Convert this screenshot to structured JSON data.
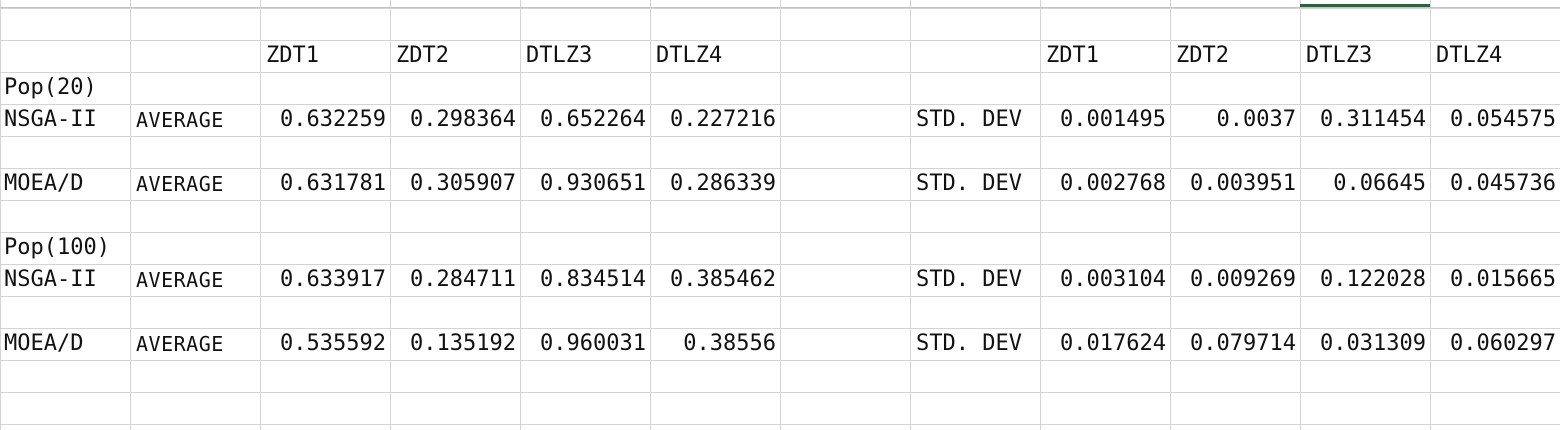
{
  "sheet": {
    "headers": [
      "ZDT1",
      "ZDT2",
      "DTLZ3",
      "DTLZ4"
    ],
    "groups": [
      {
        "label": "Pop(20)",
        "rows": [
          {
            "algorithm": "NSGA-II",
            "avg_label": "AVERAGE",
            "avg": [
              "0.632259",
              "0.298364",
              "0.652264",
              "0.227216"
            ],
            "std_label": "STD. DEV",
            "std": [
              "0.001495",
              "0.0037",
              "0.311454",
              "0.054575"
            ]
          },
          {
            "algorithm": "MOEA/D",
            "avg_label": "AVERAGE",
            "avg": [
              "0.631781",
              "0.305907",
              "0.930651",
              "0.286339"
            ],
            "std_label": "STD. DEV",
            "std": [
              "0.002768",
              "0.003951",
              "0.06645",
              "0.045736"
            ]
          }
        ]
      },
      {
        "label": "Pop(100)",
        "rows": [
          {
            "algorithm": "NSGA-II",
            "avg_label": "AVERAGE",
            "avg": [
              "0.633917",
              "0.284711",
              "0.834514",
              "0.385462"
            ],
            "std_label": "STD. DEV",
            "std": [
              "0.003104",
              "0.009269",
              "0.122028",
              "0.015665"
            ]
          },
          {
            "algorithm": "MOEA/D",
            "avg_label": "AVERAGE",
            "avg": [
              "0.535592",
              "0.135192",
              "0.960031",
              "0.38556"
            ],
            "std_label": "STD. DEV",
            "std": [
              "0.017624",
              "0.079714",
              "0.031309",
              "0.060297"
            ]
          }
        ]
      }
    ],
    "colors": {
      "gridline": "#d4d4d4",
      "selection": "#1e6b3a",
      "text": "#111111"
    }
  }
}
